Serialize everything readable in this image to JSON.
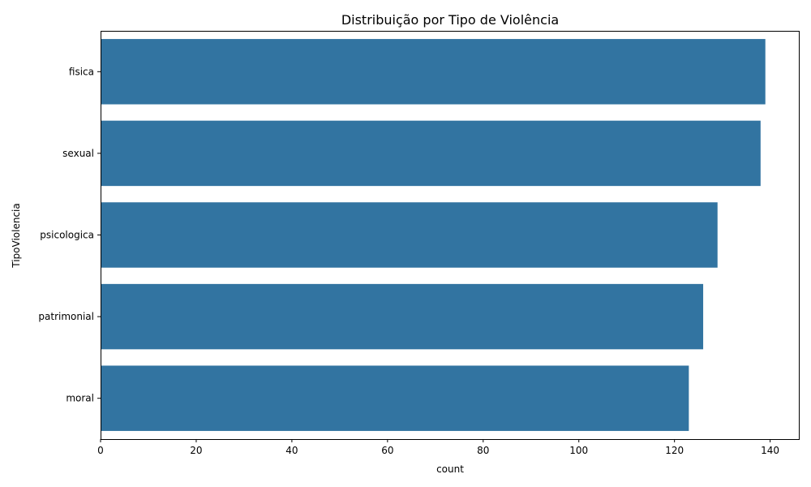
{
  "chart_data": {
    "type": "bar",
    "orientation": "horizontal",
    "title": "Distribuição por Tipo de Violência",
    "xlabel": "count",
    "ylabel": "TipoViolencia",
    "categories": [
      "fisica",
      "sexual",
      "psicologica",
      "patrimonial",
      "moral"
    ],
    "values": [
      139,
      138,
      129,
      126,
      123
    ],
    "xlim": [
      0,
      146
    ],
    "xticks": [
      0,
      20,
      40,
      60,
      80,
      100,
      120,
      140
    ],
    "bar_color": "#3274a1",
    "grid": false,
    "legend": "none"
  }
}
